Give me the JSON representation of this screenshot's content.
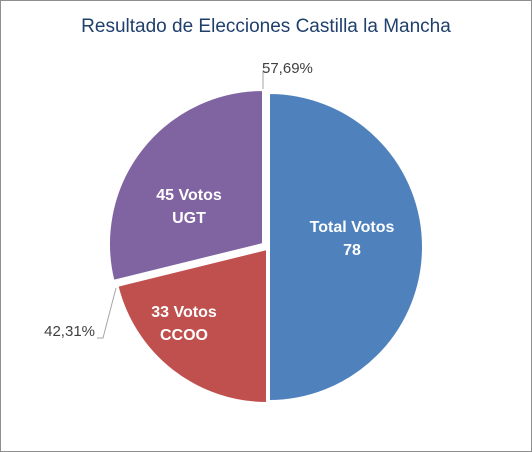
{
  "chart_data": {
    "type": "pie",
    "title": "Resultado de Elecciones Castilla la Mancha",
    "slices": [
      {
        "label_line1": "Total Votos",
        "label_line2": "78",
        "value": 78,
        "color": "#4f81bd"
      },
      {
        "label_line1": "33 Votos",
        "label_line2": "CCOO",
        "value": 33,
        "color": "#c0504d"
      },
      {
        "label_line1": "45 Votos",
        "label_line2": "UGT",
        "value": 45,
        "color": "#8064a2"
      }
    ],
    "callouts": [
      {
        "text": "57,69%"
      },
      {
        "text": "42,31%"
      }
    ]
  }
}
